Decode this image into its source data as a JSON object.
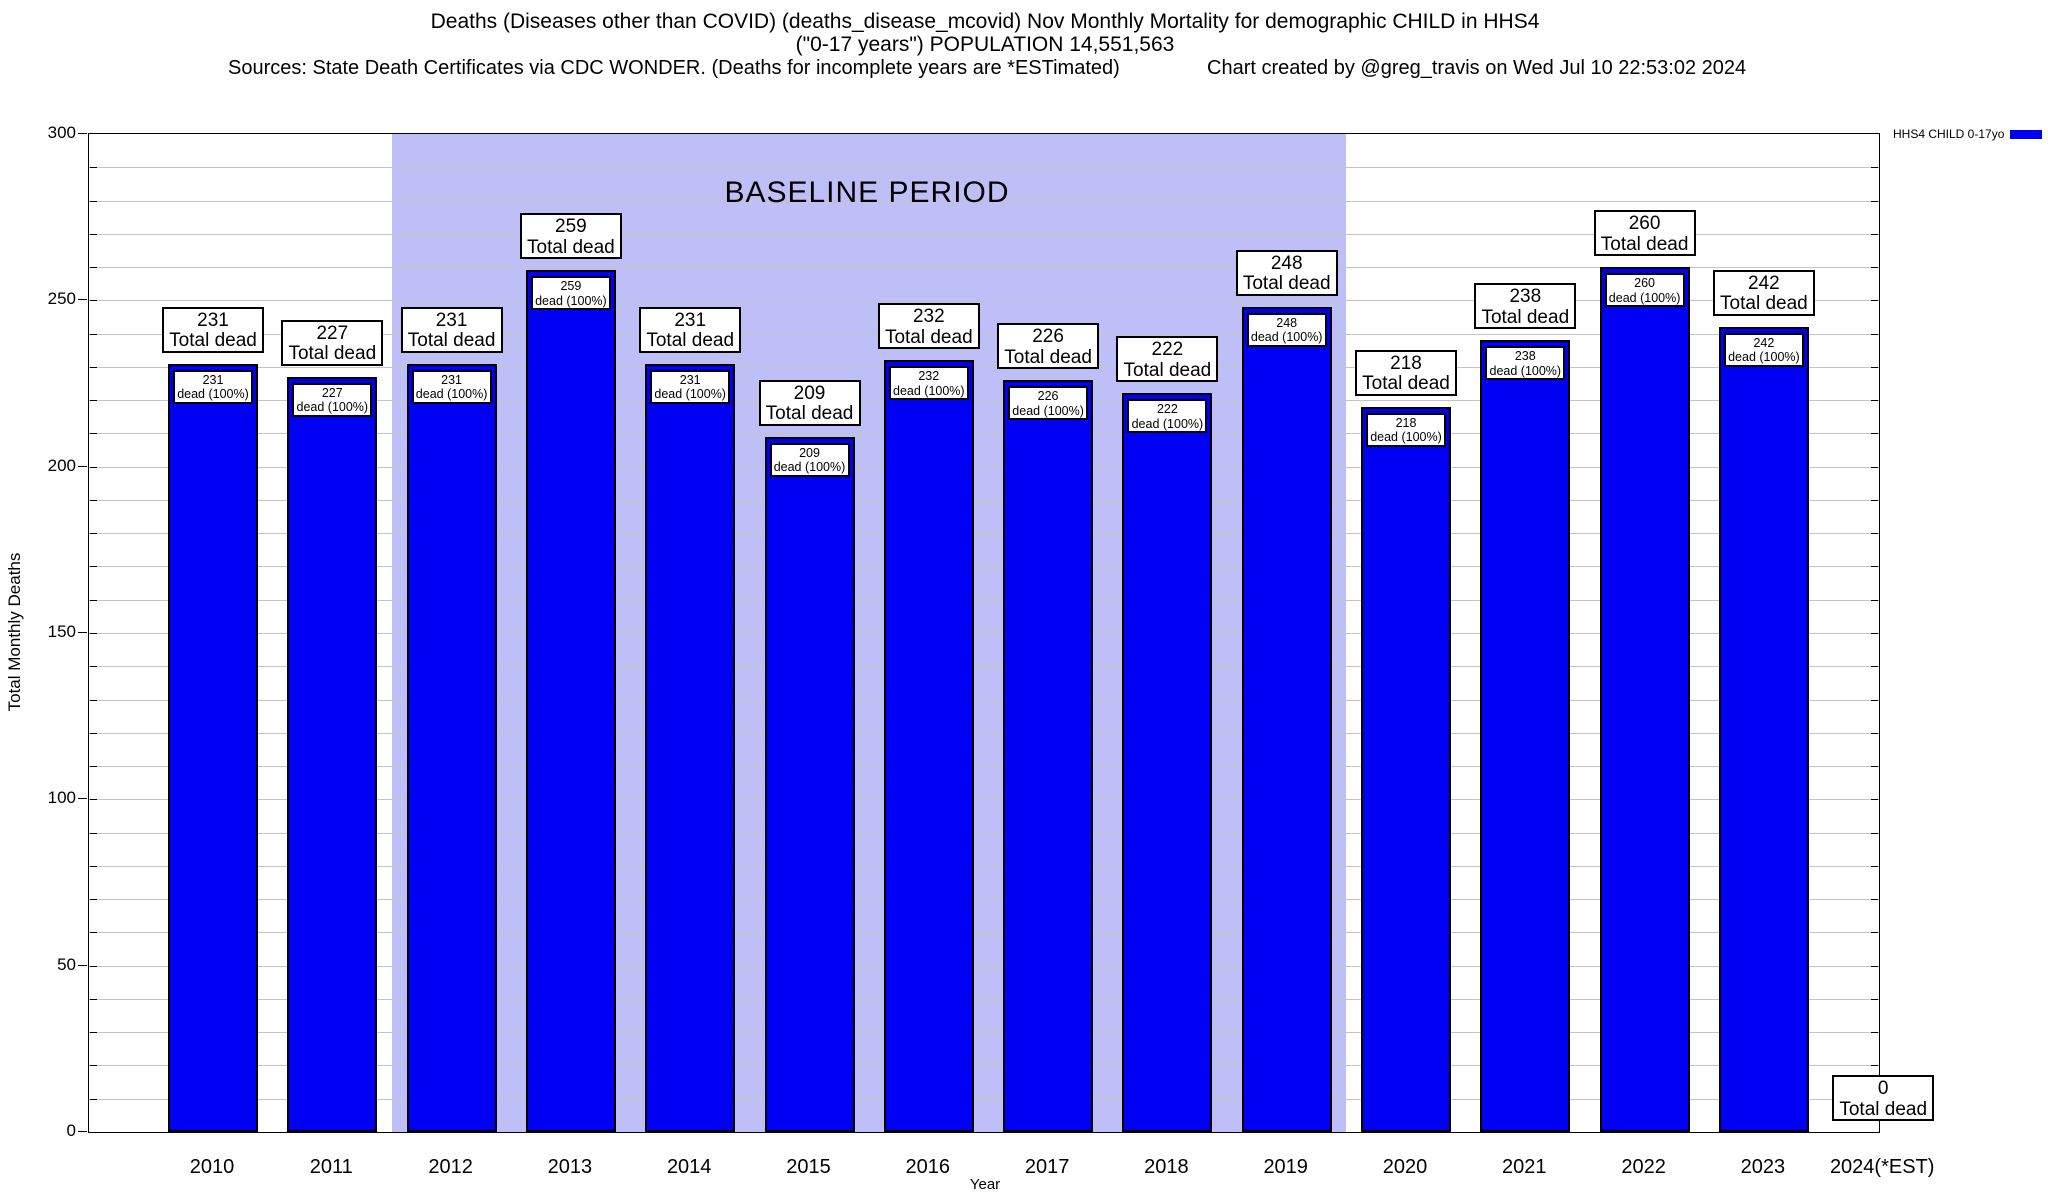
{
  "header": {
    "title_line1": "Deaths (Diseases other than COVID) (deaths_disease_mcovid) Nov Monthly Mortality for demographic CHILD in HHS4",
    "title_line2": "(\"0-17 years\") POPULATION 14,551,563",
    "sources": "Sources: State Death Certificates via CDC WONDER. (Deaths for incomplete years are *ESTimated)",
    "credit": "Chart created by @greg_travis on Wed Jul 10 22:53:02 2024"
  },
  "legend": {
    "label": "HHS4 CHILD 0-17yo",
    "color": "#0000f2"
  },
  "chart_data": {
    "type": "bar",
    "title": "Deaths (Diseases other than COVID) (deaths_disease_mcovid) Nov Monthly Mortality for demographic CHILD in HHS4",
    "subtitle": "(\"0-17 years\") POPULATION 14,551,563",
    "categories": [
      "2010",
      "2011",
      "2012",
      "2013",
      "2014",
      "2015",
      "2016",
      "2017",
      "2018",
      "2019",
      "2020",
      "2021",
      "2022",
      "2023",
      "2024(*EST)"
    ],
    "values": [
      231,
      227,
      231,
      259,
      231,
      209,
      232,
      226,
      222,
      248,
      218,
      238,
      260,
      242,
      0
    ],
    "xlabel": "Year",
    "ylabel": "Total Monthly Deaths",
    "ylim": [
      0,
      300
    ],
    "ytick_step": 50,
    "minor_grid_step": 10,
    "grid": true,
    "legend_entries": [
      "HHS4 CHILD 0-17yo"
    ],
    "legend_position": "top-right",
    "bar_color": "#0000f2",
    "bar_top_label_line2": "Total dead",
    "bar_inner_label_line2": "dead (100%)",
    "baseline_band": {
      "label": "BASELINE PERIOD",
      "from_category": "2012",
      "to_category": "2019",
      "color": "#bfbff7"
    }
  }
}
